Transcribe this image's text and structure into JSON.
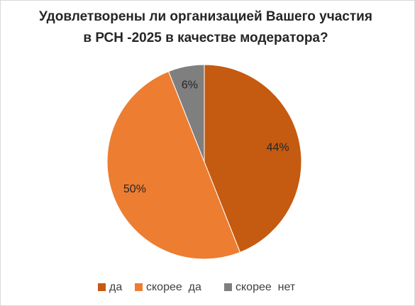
{
  "chart_data": {
    "type": "pie",
    "title": [
      "Удовлетворены ли организацией Вашего участия",
      "в РСН -2025 в качестве модератора?"
    ],
    "categories": [
      "да",
      "скорее  да",
      "скорее  нет"
    ],
    "values": [
      44,
      50,
      6
    ],
    "value_labels": [
      "44%",
      "50%",
      "6%"
    ],
    "colors": [
      "#c55a11",
      "#ed7d31",
      "#7f7f7f"
    ],
    "legend": "bottom"
  }
}
